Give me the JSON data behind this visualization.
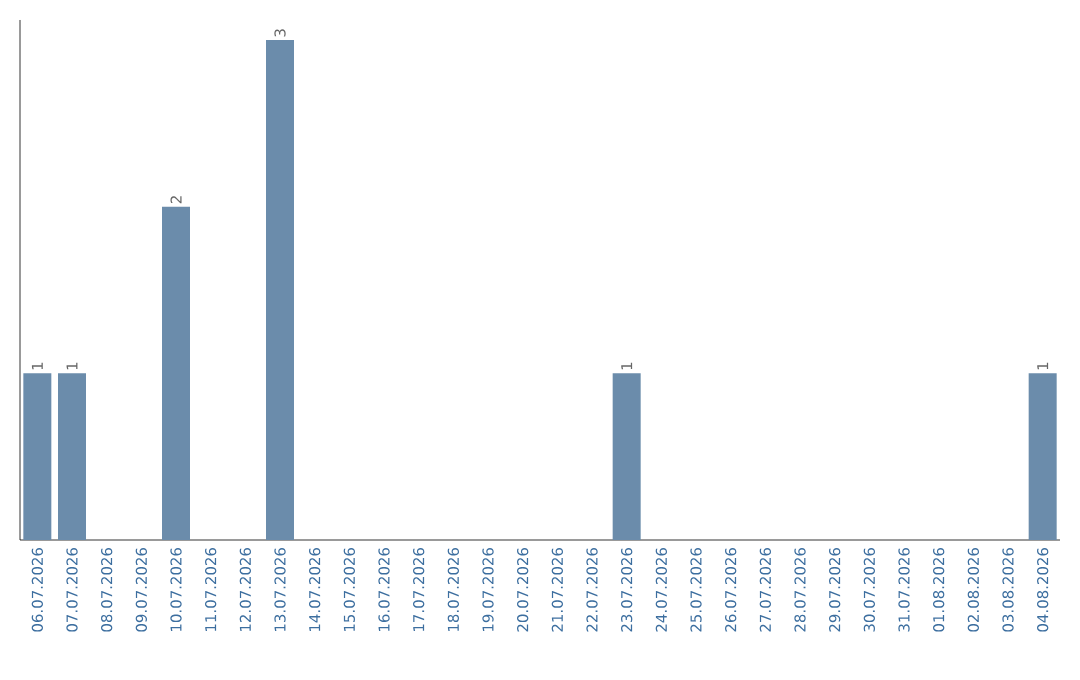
{
  "chart_data": {
    "type": "bar",
    "categories": [
      "06.07.2026",
      "07.07.2026",
      "08.07.2026",
      "09.07.2026",
      "10.07.2026",
      "11.07.2026",
      "12.07.2026",
      "13.07.2026",
      "14.07.2026",
      "15.07.2026",
      "16.07.2026",
      "17.07.2026",
      "18.07.2026",
      "19.07.2026",
      "20.07.2026",
      "21.07.2026",
      "22.07.2026",
      "23.07.2026",
      "24.07.2026",
      "25.07.2026",
      "26.07.2026",
      "27.07.2026",
      "28.07.2026",
      "29.07.2026",
      "30.07.2026",
      "31.07.2026",
      "01.08.2026",
      "02.08.2026",
      "03.08.2026",
      "04.08.2026"
    ],
    "values": [
      1,
      1,
      0,
      0,
      2,
      0,
      0,
      3,
      0,
      0,
      0,
      0,
      0,
      0,
      0,
      0,
      0,
      1,
      0,
      0,
      0,
      0,
      0,
      0,
      0,
      0,
      0,
      0,
      0,
      1
    ],
    "value_labels": [
      "1",
      "1",
      null,
      null,
      "2",
      null,
      null,
      "3",
      null,
      null,
      null,
      null,
      null,
      null,
      null,
      null,
      null,
      "1",
      null,
      null,
      null,
      null,
      null,
      null,
      null,
      null,
      null,
      null,
      null,
      "1"
    ],
    "color": "#6b8cab",
    "ylim": [
      0,
      3.12
    ],
    "tick_labels": "x"
  }
}
